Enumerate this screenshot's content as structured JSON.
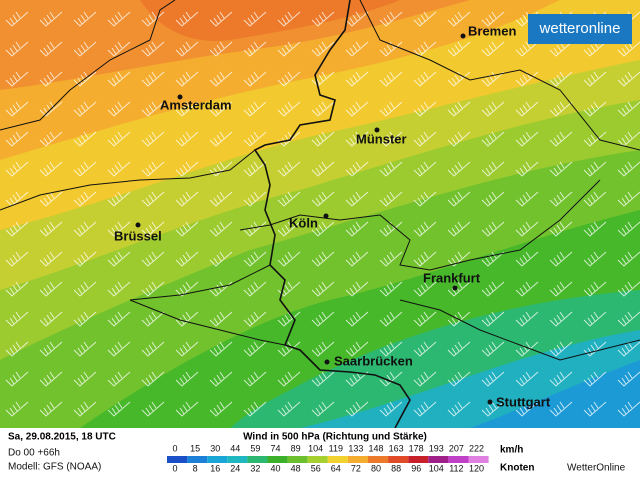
{
  "header": {
    "logo": "wetteronline"
  },
  "cities": [
    {
      "label": "Bremen"
    },
    {
      "label": "Amsterdam"
    },
    {
      "label": "Münster"
    },
    {
      "label": "Köln"
    },
    {
      "label": "Brüssel"
    },
    {
      "label": "Frankfurt"
    },
    {
      "label": "Saarbrücken"
    },
    {
      "label": "Stuttgart"
    }
  ],
  "footer": {
    "date": "Sa, 29.08.2015, 18 UTC",
    "run": "Do 00 +66h",
    "model": "Modell: GFS (NOAA)",
    "title": "Wind in 500 hPa (Richtung und Stärke)",
    "kmh_unit": "km/h",
    "knots_unit": "Knoten",
    "brand": "WetterOnline",
    "kmh": [
      0,
      15,
      30,
      44,
      59,
      74,
      89,
      104,
      119,
      133,
      148,
      163,
      178,
      193,
      207,
      222
    ],
    "knots": [
      0,
      8,
      16,
      24,
      32,
      40,
      48,
      56,
      64,
      72,
      80,
      88,
      96,
      104,
      112,
      120
    ],
    "colors": [
      "#1a4fc8",
      "#1c7fd8",
      "#1aa6d6",
      "#20b8c0",
      "#2cb870",
      "#3cb02a",
      "#6cc02e",
      "#a6cf30",
      "#f2d22e",
      "#f5ad30",
      "#ec7a2a",
      "#e04a26",
      "#c8202a",
      "#a0208a",
      "#c040c8",
      "#e080e0"
    ]
  }
}
